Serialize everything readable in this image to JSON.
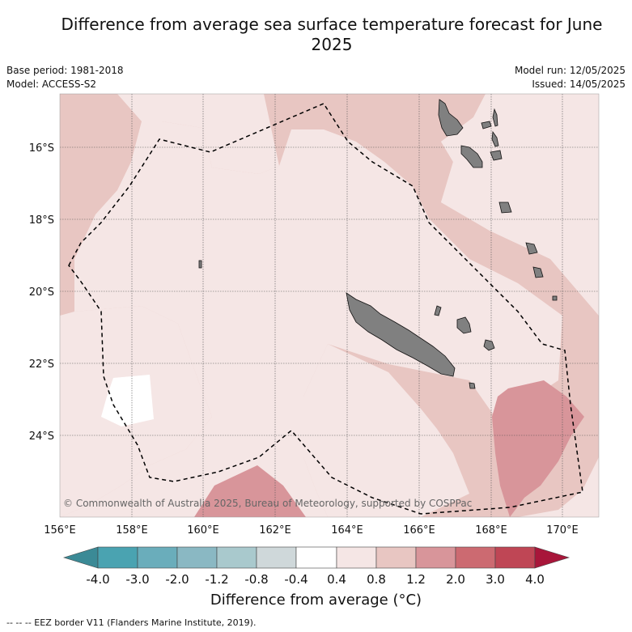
{
  "title": "Difference from average sea surface temperature forecast for June 2025",
  "base_period": "Base period: 1981-2018",
  "model": "Model: ACCESS-S2",
  "model_run": "Model run: 12/05/2025",
  "issued": "Issued: 14/05/2025",
  "copyright": "© Commonwealth of Australia 2025, Bureau of Meteorology, supported by COSPPac",
  "lon_ticks": [
    "156°E",
    "158°E",
    "160°E",
    "162°E",
    "164°E",
    "166°E",
    "168°E",
    "170°E"
  ],
  "lat_ticks": [
    "16°S",
    "18°S",
    "20°S",
    "22°S",
    "24°S"
  ],
  "colorbar": {
    "title": "Difference from average (°C)",
    "labels": [
      "-4.0",
      "-3.0",
      "-2.0",
      "-1.2",
      "-0.8",
      "-0.4",
      "0.4",
      "0.8",
      "1.2",
      "2.0",
      "3.0",
      "4.0"
    ],
    "colors": [
      "#3b8a96",
      "#4aa3b1",
      "#6aadbb",
      "#8ab8c3",
      "#a9c9cd",
      "#cfd8da",
      "#ffffff",
      "#f5e6e5",
      "#e8c6c2",
      "#d8959a",
      "#cc6a71",
      "#bf4655",
      "#a8163a"
    ]
  },
  "eez_note": "-- -- -- EEZ border V11 (Flanders Marine Institute, 2019).",
  "colors": {
    "land": "#808080",
    "band_04_08": "#f5e6e5",
    "band_08_12": "#e8c6c2",
    "band_12_20": "#d8959a",
    "neutral": "#ffffff"
  }
}
